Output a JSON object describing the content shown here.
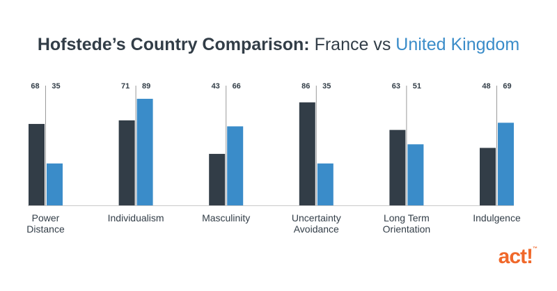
{
  "title": {
    "bold": "Hofstede’s Country Comparison:",
    "series_a": "France",
    "vs": "vs",
    "series_b": "United Kingdom"
  },
  "chart_data": {
    "type": "bar",
    "categories": [
      [
        "Power",
        "Distance"
      ],
      [
        "Individualism"
      ],
      [
        "Masculinity"
      ],
      [
        "Uncertainty",
        "Avoidance"
      ],
      [
        "Long Term",
        "Orientation"
      ],
      [
        "Indulgence"
      ]
    ],
    "series": [
      {
        "name": "France",
        "values": [
          68,
          71,
          43,
          86,
          63,
          48
        ],
        "color": "#323d47"
      },
      {
        "name": "United Kingdom",
        "values": [
          35,
          89,
          66,
          35,
          51,
          69
        ],
        "color": "#3a8cc9"
      }
    ],
    "ylim": [
      0,
      100
    ],
    "grid": false,
    "legend": "none",
    "data_labels": true
  },
  "logo": {
    "text": "act!",
    "tm": "™"
  }
}
